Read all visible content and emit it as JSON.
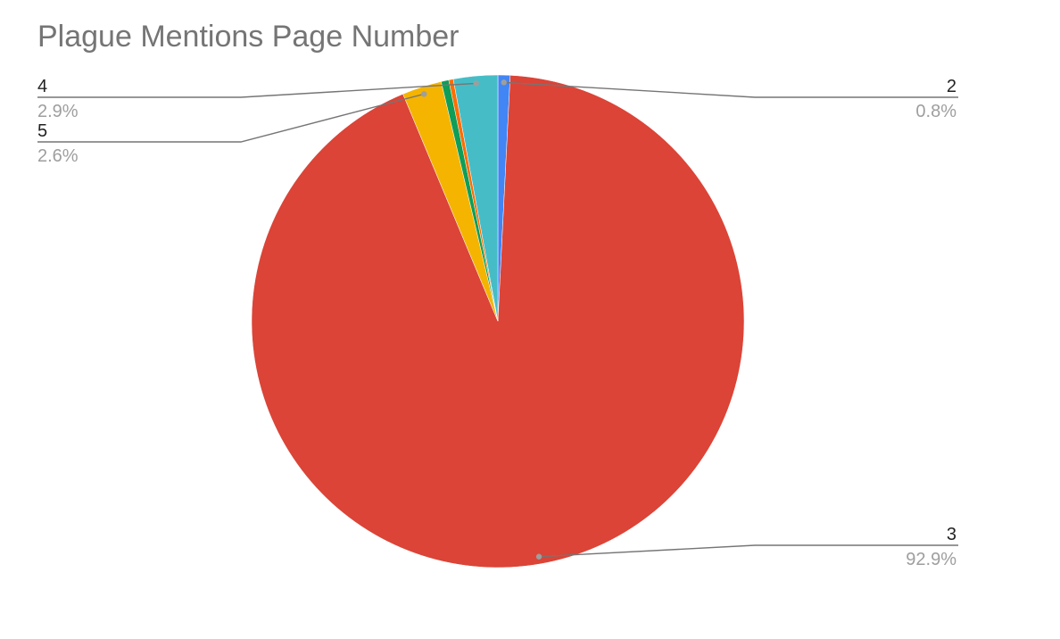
{
  "chart_data": {
    "type": "pie",
    "title": "Plague Mentions Page Number",
    "slices": [
      {
        "label": "2",
        "value": 0.8,
        "display": "0.8%",
        "color": "#4285f4",
        "labeled": true
      },
      {
        "label": "3",
        "value": 92.9,
        "display": "92.9%",
        "color": "#db4437",
        "labeled": true
      },
      {
        "label": "5",
        "value": 2.6,
        "display": "2.6%",
        "color": "#f4b400",
        "labeled": true
      },
      {
        "label": "",
        "value": 0.5,
        "display": "",
        "color": "#0f9d58",
        "labeled": false
      },
      {
        "label": "",
        "value": 0.3,
        "display": "",
        "color": "#ff6d01",
        "labeled": false
      },
      {
        "label": "4",
        "value": 2.9,
        "display": "2.9%",
        "color": "#46bdc6",
        "labeled": true
      }
    ],
    "legend": "labels with leader lines"
  }
}
